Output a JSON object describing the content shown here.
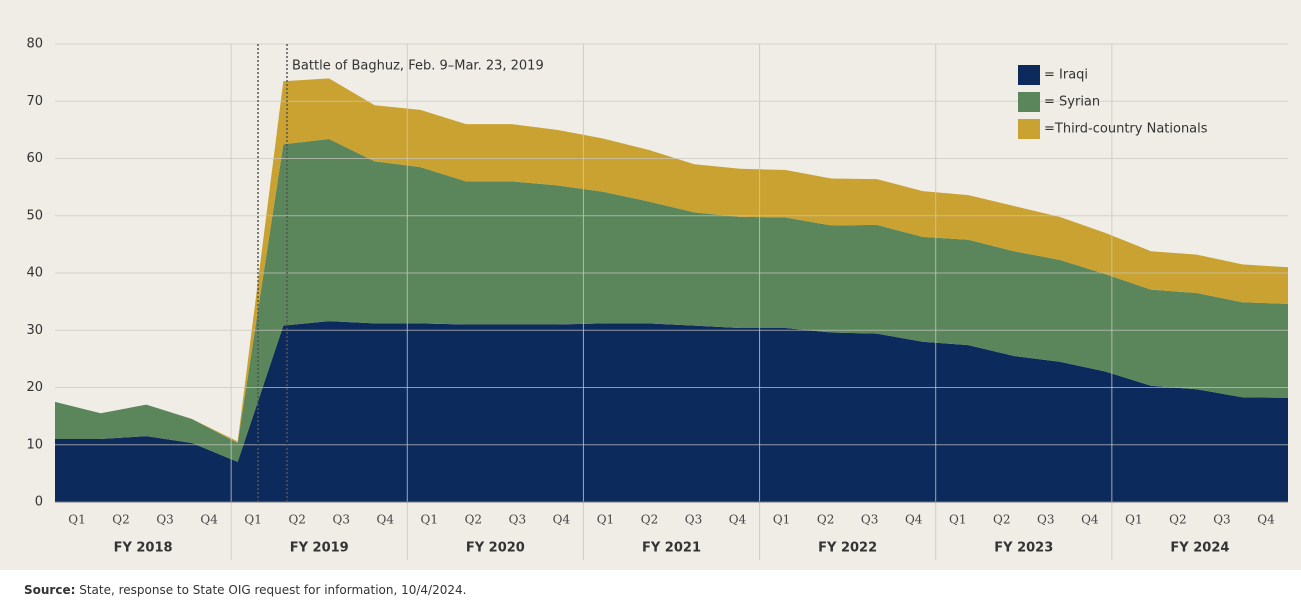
{
  "chart_data": {
    "type": "stacked_area",
    "categories": [
      "Q1",
      "Q2",
      "Q3",
      "Q4",
      "Q1",
      "Q2",
      "Q3",
      "Q4",
      "Q1",
      "Q2",
      "Q3",
      "Q4",
      "Q1",
      "Q2",
      "Q3",
      "Q4",
      "Q1",
      "Q2",
      "Q3",
      "Q4",
      "Q1",
      "Q2",
      "Q3",
      "Q4",
      "Q1",
      "Q2",
      "Q3",
      "Q4"
    ],
    "groups": [
      "FY 2018",
      "FY 2019",
      "FY 2020",
      "FY 2021",
      "FY 2022",
      "FY 2023",
      "FY 2024"
    ],
    "series": [
      {
        "name": "= Iraqi",
        "color": "#0c2a5c",
        "values": [
          11,
          11,
          11.5,
          10.3,
          7,
          30.8,
          31.6,
          31.2,
          31.2,
          31,
          31,
          31,
          31.2,
          31.2,
          30.8,
          30.4,
          30.4,
          29.6,
          29.4,
          28,
          27.4,
          25.5,
          24.5,
          22.8,
          20.3,
          19.7,
          18.3,
          18.2
        ]
      },
      {
        "name": "= Syrian",
        "color": "#5b855b",
        "values": [
          6.5,
          4.5,
          5.5,
          4.2,
          3.3,
          31.7,
          31.8,
          28.3,
          27.3,
          25,
          25,
          24.3,
          23,
          21.3,
          19.8,
          19.4,
          19.3,
          18.7,
          19,
          18.3,
          18.4,
          18.3,
          17.8,
          17,
          16.8,
          16.8,
          16.6,
          16.4
        ]
      },
      {
        "name": "=Third-country Nationals",
        "color": "#c9a232",
        "values": [
          0,
          0,
          0,
          0,
          0.3,
          11,
          10.6,
          9.8,
          10,
          10,
          10,
          9.7,
          9.3,
          9,
          8.4,
          8.4,
          8.3,
          8.2,
          8,
          8,
          7.8,
          7.9,
          7.5,
          7.2,
          6.7,
          6.7,
          6.6,
          6.4
        ]
      }
    ],
    "ylim": [
      0,
      80
    ],
    "yticks": [
      0,
      10,
      20,
      30,
      40,
      50,
      60,
      70,
      80
    ],
    "grid": true,
    "annotation": "Battle of Baghuz, Feb. 9–Mar. 23, 2019",
    "legend": "top-right",
    "source_label": "Source:",
    "source": " State, response to State OIG request for information, 10/4/2024."
  }
}
